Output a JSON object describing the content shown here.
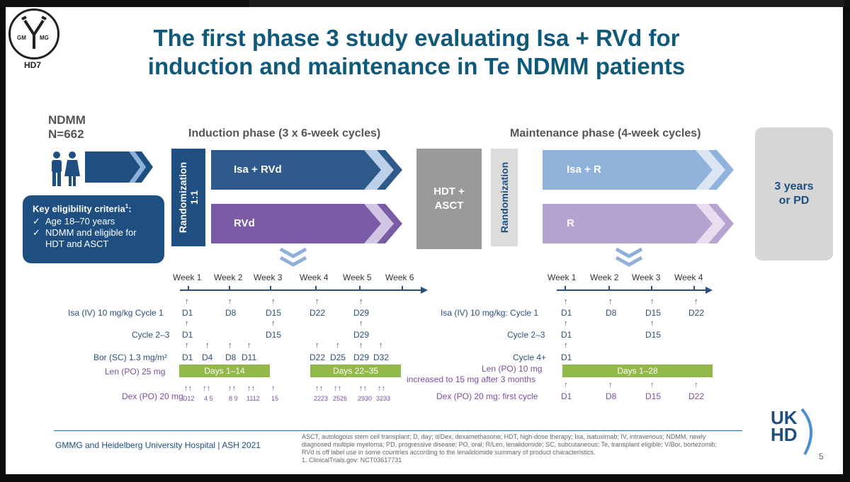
{
  "logo": {
    "left": "GM",
    "right": "MG",
    "code": "HD7"
  },
  "title": {
    "line1": "The first phase 3 study evaluating Isa + RVd for",
    "line2": "induction and maintenance in Te NDMM patients"
  },
  "population": {
    "label": "NDMM",
    "n": "N=662"
  },
  "eligibility": {
    "heading": "Key eligibility criteria",
    "heading_sup": "1",
    "heading_colon": ":",
    "items": [
      "Age 18–70 years",
      "NDMM and eligible for HDT and ASCT"
    ]
  },
  "induction": {
    "header": "Induction phase (3 x 6-week cycles)",
    "randomization": "Randomization",
    "ratio": "1:1",
    "arm1": "Isa + RVd",
    "arm2": "RVd"
  },
  "hdt": {
    "line1": "HDT +",
    "line2": "ASCT"
  },
  "maintenance": {
    "header": "Maintenance phase (4-week cycles)",
    "randomization": "Randomization",
    "arm1": "Isa + R",
    "arm2": "R"
  },
  "end": {
    "line1": "3 years",
    "line2": "or PD"
  },
  "induction_timeline": {
    "weeks": [
      "Week 1",
      "Week 2",
      "Week 3",
      "Week 4",
      "Week 5",
      "Week 6"
    ],
    "isa_label": "Isa (IV) 10 mg/kg Cycle 1",
    "isa_days": [
      "D1",
      "D8",
      "D15",
      "D22",
      "D29"
    ],
    "cycle23_label": "Cycle 2–3",
    "cycle23_days": [
      "D1",
      "D15",
      "D29"
    ],
    "bor_label": "Bor (SC) 1.3 mg/m²",
    "bor_days": [
      "D1",
      "D4",
      "D8",
      "D11",
      "D22",
      "D25",
      "D29",
      "D32"
    ],
    "len_label": "Len (PO) 25 mg",
    "len_bar1": "Days 1–14",
    "len_bar2": "Days 22–35",
    "dex_label": "Dex (PO) 20 mg",
    "dex_days": [
      "D12",
      "4 5",
      "8 9",
      "1112",
      "15",
      "2223",
      "2526",
      "2930",
      "3233"
    ]
  },
  "maintenance_timeline": {
    "weeks": [
      "Week 1",
      "Week 2",
      "Week 3",
      "Week 4"
    ],
    "isa_label": "Isa (IV) 10 mg/kg: Cycle 1",
    "isa_days": [
      "D1",
      "D8",
      "D15",
      "D22"
    ],
    "cycle23_label": "Cycle 2–3",
    "cycle23_days": [
      "D1",
      "D15"
    ],
    "cycle4_label": "Cycle 4+",
    "cycle4_days": [
      "D1"
    ],
    "len_label1": "Len (PO) 10 mg",
    "len_label2": "increased to 15 mg after 3 months",
    "len_bar": "Days 1–28",
    "dex_label": "Dex (PO) 20 mg: first cycle",
    "dex_days": [
      "D1",
      "D8",
      "D15",
      "D22"
    ]
  },
  "footer": {
    "left": "GMMG and Heidelberg University Hospital | ASH 2021",
    "notes": "ASCT, autologous stem cell transplant; D, day; d/Dex, dexamethasone; HDT, high-dose therapy; Isa, isatuximab; IV, intravenous; NDMM, newly diagnosed multiple myeloma; PD, progressive disease; PO, oral; R/Len, lenalidomide; SC, subcutaneous; Te, transplant eligible; V/Bor, bortezomib; RVd is off label use in some countries according to the lenalidomide summary of product characteristics.",
    "ref": "1. ClinicalTrials.gov: NCT03617731",
    "brand_line1": "UK",
    "brand_line2": "HD",
    "page": "5"
  },
  "colors": {
    "title": "#0f5a7a",
    "navy": "#1f4f80",
    "arm_blue": "#2e5a8c",
    "arm_purple": "#7b5aa6",
    "light_blue": "#90b3db",
    "light_purple": "#b7a3cf",
    "green": "#93b84a"
  }
}
